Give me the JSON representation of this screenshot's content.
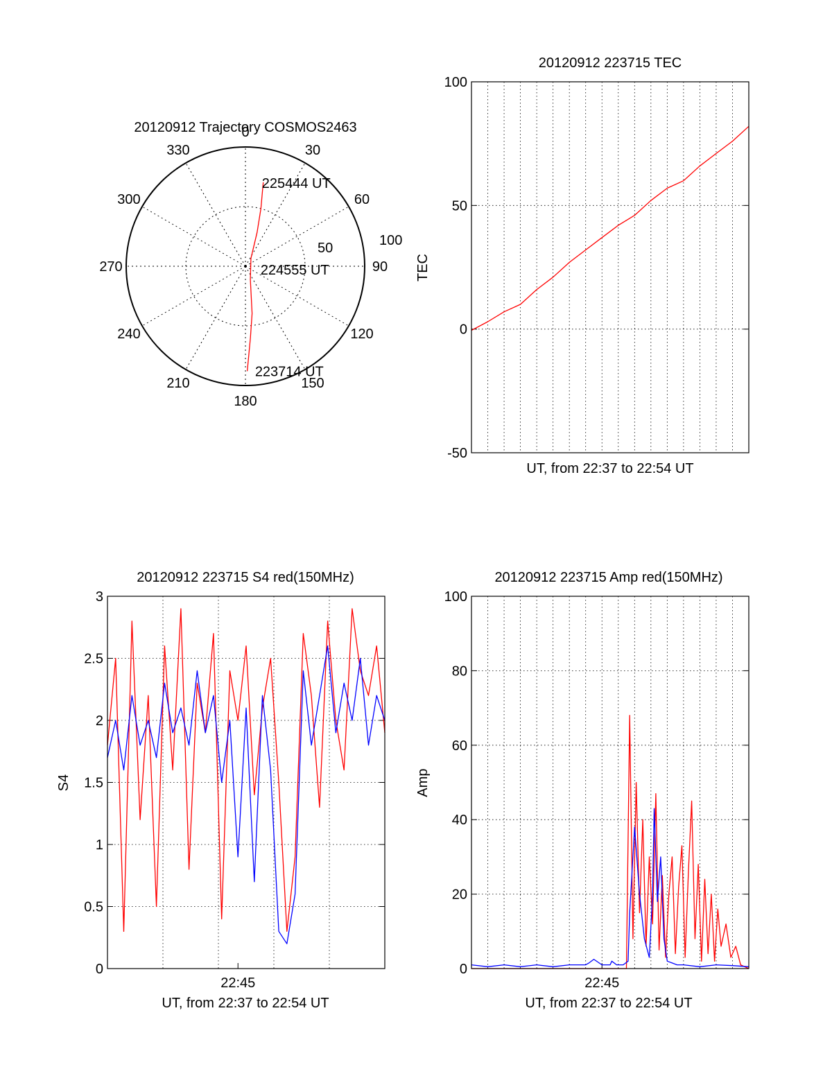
{
  "chart_data": [
    {
      "id": "polar",
      "type": "polar",
      "title": "20120912 Trajectory COSMOS2463",
      "angle_labels": [
        "0",
        "30",
        "60",
        "90",
        "120",
        "150",
        "180",
        "210",
        "240",
        "270",
        "300",
        "330"
      ],
      "radial_labels": [
        "50",
        "100"
      ],
      "radial_max": 100,
      "track": {
        "color": "#ff0000",
        "points": [
          [
            12,
            72
          ],
          [
            15,
            50
          ],
          [
            19,
            30
          ],
          [
            35,
            8
          ],
          [
            160,
            12
          ],
          [
            172,
            40
          ],
          [
            176,
            60
          ],
          [
            178,
            76
          ],
          [
            179,
            88
          ]
        ],
        "annotations": [
          {
            "text": "225444 UT",
            "az": 12,
            "r": 72
          },
          {
            "text": "224555 UT",
            "az": 100,
            "r": 14
          },
          {
            "text": "223714 UT",
            "az": 174,
            "r": 88
          }
        ]
      }
    },
    {
      "id": "tec",
      "type": "line",
      "title": "20120912 223715 TEC",
      "xlabel": "UT, from 22:37 to 22:54 UT",
      "ylabel": "TEC",
      "xlim": [
        0,
        17
      ],
      "ylim": [
        -50,
        100
      ],
      "yticks": [
        -50,
        0,
        50,
        100
      ],
      "ytick_labels": [
        "-50",
        "0",
        "50",
        "100"
      ],
      "xticks": [],
      "xtick_labels": [],
      "series": [
        {
          "name": "TEC",
          "color": "#ff0000",
          "x": [
            0,
            1,
            2,
            3,
            4,
            5,
            6,
            7,
            8,
            9,
            10,
            11,
            12,
            13,
            14,
            15,
            16,
            17
          ],
          "y": [
            -0.5,
            3,
            7,
            10,
            16,
            21,
            27,
            32,
            37,
            42,
            46,
            52,
            57,
            60,
            66,
            71,
            76,
            82
          ]
        }
      ]
    },
    {
      "id": "s4",
      "type": "line",
      "title": "20120912 223715 S4 red(150MHz)",
      "xlabel": "UT, from 22:37 to 22:54 UT",
      "ylabel": "S4",
      "xlim": [
        0,
        17
      ],
      "ylim": [
        0,
        3
      ],
      "yticks": [
        0,
        0.5,
        1,
        1.5,
        2,
        2.5,
        3
      ],
      "ytick_labels": [
        "0",
        "0.5",
        "1",
        "1.5",
        "2",
        "2.5",
        "3"
      ],
      "xticks": [
        8
      ],
      "xtick_labels": [
        "22:45"
      ],
      "series": [
        {
          "name": "S4 red",
          "color": "#ff0000",
          "x": [
            0,
            0.5,
            1,
            1.5,
            2,
            2.5,
            3,
            3.5,
            4,
            4.5,
            5,
            5.5,
            6,
            6.5,
            7,
            7.5,
            8,
            8.5,
            9,
            9.5,
            10,
            10.5,
            11,
            11.5,
            12,
            12.5,
            13,
            13.5,
            14,
            14.5,
            15,
            15.5,
            16,
            16.5,
            17
          ],
          "y": [
            1.8,
            2.5,
            0.3,
            2.8,
            1.2,
            2.2,
            0.5,
            2.6,
            1.6,
            2.9,
            0.8,
            2.3,
            1.9,
            2.7,
            0.4,
            2.4,
            2.0,
            2.6,
            1.4,
            2.1,
            2.5,
            1.5,
            0.3,
            0.9,
            2.7,
            2.2,
            1.3,
            2.8,
            2.0,
            1.6,
            2.9,
            2.4,
            2.2,
            2.6,
            1.9
          ]
        },
        {
          "name": "S4 blue",
          "color": "#0000ff",
          "x": [
            0,
            0.5,
            1,
            1.5,
            2,
            2.5,
            3,
            3.5,
            4,
            4.5,
            5,
            5.5,
            6,
            6.5,
            7,
            7.5,
            8,
            8.5,
            9,
            9.5,
            10,
            10.5,
            11,
            11.5,
            12,
            12.5,
            13,
            13.5,
            14,
            14.5,
            15,
            15.5,
            16,
            16.5,
            17
          ],
          "y": [
            1.7,
            2.0,
            1.6,
            2.2,
            1.8,
            2.0,
            1.7,
            2.3,
            1.9,
            2.1,
            1.8,
            2.4,
            1.9,
            2.2,
            1.5,
            2.0,
            0.9,
            2.1,
            0.7,
            2.2,
            1.6,
            0.3,
            0.2,
            0.6,
            2.4,
            1.8,
            2.2,
            2.6,
            1.9,
            2.3,
            2.0,
            2.5,
            1.8,
            2.2,
            2.0
          ]
        }
      ]
    },
    {
      "id": "amp",
      "type": "line",
      "title": "20120912 223715 Amp red(150MHz)",
      "xlabel": "UT, from 22:37 to 22:54 UT",
      "ylabel": "Amp",
      "xlim": [
        0,
        17
      ],
      "ylim": [
        0,
        100
      ],
      "yticks": [
        0,
        20,
        40,
        60,
        80,
        100
      ],
      "ytick_labels": [
        "0",
        "20",
        "40",
        "60",
        "80",
        "100"
      ],
      "xticks": [
        8
      ],
      "xtick_labels": [
        "22:45"
      ],
      "series": [
        {
          "name": "Amp red",
          "color": "#ff0000",
          "x": [
            0,
            9.5,
            9.7,
            9.9,
            10.1,
            10.3,
            10.5,
            10.7,
            10.9,
            11.1,
            11.3,
            11.5,
            11.7,
            11.9,
            12.1,
            12.3,
            12.5,
            12.7,
            12.9,
            13.1,
            13.3,
            13.5,
            13.7,
            13.9,
            14.1,
            14.3,
            14.5,
            14.7,
            14.9,
            15.1,
            15.3,
            15.6,
            15.9,
            16.2,
            16.5,
            17
          ],
          "y": [
            0,
            0,
            68,
            8,
            50,
            15,
            40,
            6,
            30,
            12,
            47,
            5,
            25,
            3,
            20,
            30,
            4,
            22,
            33,
            3,
            26,
            45,
            8,
            28,
            2,
            24,
            4,
            20,
            2,
            16,
            6,
            12,
            3,
            6,
            1,
            0
          ]
        },
        {
          "name": "Amp blue",
          "color": "#0000ff",
          "x": [
            0,
            1,
            2,
            3,
            4,
            5,
            6,
            7,
            7.2,
            7.5,
            8,
            8.5,
            8.6,
            8.9,
            9.3,
            9.6,
            9.7,
            10.0,
            10.3,
            10.6,
            10.9,
            11.1,
            11.2,
            11.4,
            11.6,
            11.8,
            12.0,
            12.3,
            12.6,
            13,
            14,
            15,
            16,
            17
          ],
          "y": [
            1,
            0.5,
            1,
            0.5,
            1,
            0.5,
            1,
            1,
            1.5,
            2.5,
            1,
            1,
            2,
            1,
            1,
            2,
            15,
            38,
            20,
            8,
            3,
            20,
            43,
            18,
            30,
            8,
            2,
            1.5,
            1,
            1,
            0.5,
            1,
            0.8,
            0.5
          ]
        }
      ]
    }
  ]
}
